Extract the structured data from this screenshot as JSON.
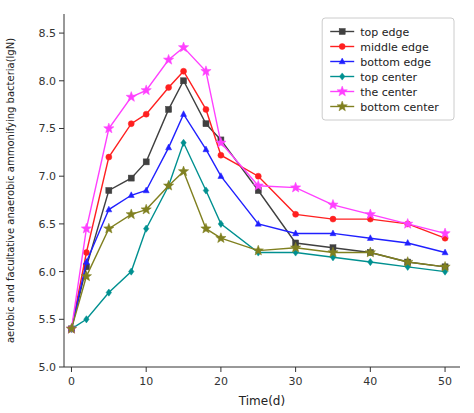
{
  "chart_data": {
    "type": "line",
    "xlabel": "Time(d)",
    "ylabel": "aerobic and facultative anaerobic ammonifying bacteria(lgN)",
    "x": [
      0,
      2,
      5,
      8,
      10,
      13,
      15,
      18,
      20,
      25,
      30,
      35,
      40,
      45,
      50
    ],
    "xlim": [
      -1,
      52
    ],
    "ylim": [
      5.0,
      8.7
    ],
    "xticks": [
      0,
      10,
      20,
      30,
      40,
      50
    ],
    "yticks": [
      {
        "value": 5.0,
        "label": "5.0"
      },
      5.5,
      {
        "value": 6.0,
        "label": "6.0"
      },
      6.5,
      {
        "value": 7.0,
        "label": "7.0"
      },
      7.5,
      {
        "value": 8.0,
        "label": "8.0"
      },
      8.5
    ],
    "grid": false,
    "legend": "upper right",
    "series": [
      {
        "name": "top edge",
        "color": "#404040",
        "marker": "square",
        "values": [
          5.4,
          6.05,
          6.85,
          6.98,
          7.15,
          7.7,
          8.0,
          7.55,
          7.38,
          6.85,
          6.3,
          6.25,
          6.2,
          6.1,
          6.05
        ]
      },
      {
        "name": "middle edge",
        "color": "#ff2020",
        "marker": "circle",
        "values": [
          5.4,
          6.2,
          7.2,
          7.55,
          7.65,
          7.93,
          8.1,
          7.7,
          7.22,
          7.0,
          6.6,
          6.55,
          6.55,
          6.5,
          6.35
        ]
      },
      {
        "name": "bottom edge",
        "color": "#2020ff",
        "marker": "triangle",
        "values": [
          5.4,
          6.1,
          6.65,
          6.8,
          6.85,
          7.3,
          7.65,
          7.28,
          7.0,
          6.5,
          6.4,
          6.4,
          6.35,
          6.3,
          6.2
        ]
      },
      {
        "name": "top center",
        "color": "#009090",
        "marker": "diamond",
        "values": [
          5.4,
          5.5,
          5.78,
          6.0,
          6.45,
          6.9,
          7.35,
          6.85,
          6.5,
          6.2,
          6.2,
          6.15,
          6.1,
          6.05,
          6.0
        ]
      },
      {
        "name": "the center",
        "color": "#ff40ff",
        "marker": "star",
        "values": [
          5.4,
          6.45,
          7.5,
          7.83,
          7.9,
          8.22,
          8.35,
          8.1,
          7.35,
          6.9,
          6.88,
          6.7,
          6.6,
          6.5,
          6.4
        ]
      },
      {
        "name": "bottom center",
        "color": "#808020",
        "marker": "star",
        "values": [
          5.4,
          5.95,
          6.45,
          6.6,
          6.65,
          6.9,
          7.05,
          6.45,
          6.35,
          6.22,
          6.25,
          6.2,
          6.2,
          6.1,
          6.05
        ]
      }
    ]
  }
}
